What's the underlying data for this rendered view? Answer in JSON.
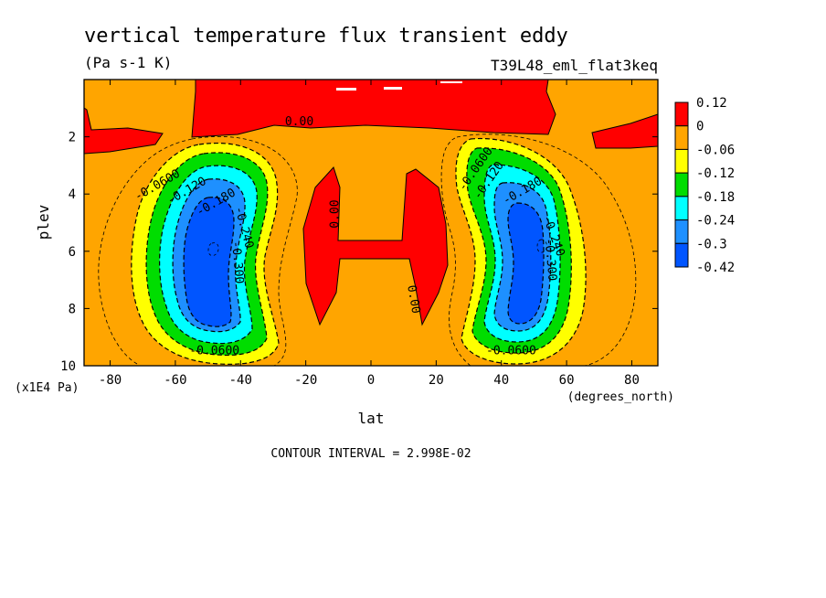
{
  "chart_data": {
    "type": "heatmap",
    "title": "vertical temperature flux transient eddy",
    "units": "(Pa s-1 K)",
    "run_label": "T39L48_eml_flat3keq",
    "xlabel": "lat",
    "x_units": "(degrees_north)",
    "ylabel": "plev",
    "y_units": "(x1E4 Pa)",
    "xlim": [
      -88,
      88
    ],
    "ylim": [
      0,
      10
    ],
    "y_reversed": true,
    "x_ticks": [
      "-80",
      "-60",
      "-40",
      "-20",
      "0",
      "20",
      "40",
      "60",
      "80"
    ],
    "x_tick_values": [
      -80,
      -60,
      -40,
      -20,
      0,
      20,
      40,
      60,
      80
    ],
    "y_ticks": [
      "2",
      "4",
      "6",
      "8",
      "10"
    ],
    "y_tick_values": [
      2,
      4,
      6,
      8,
      10
    ],
    "contour_interval_text": "CONTOUR INTERVAL = 2.998E-02",
    "colorbar": {
      "labels": [
        "0.12",
        "0",
        "-0.06",
        "-0.12",
        "-0.18",
        "-0.24",
        "-0.3",
        "-0.42"
      ],
      "colors": [
        "#ff0000",
        "#ffa500",
        "#ffff00",
        "#00dd00",
        "#00ffff",
        "#1e90ff",
        "#0055ff"
      ]
    },
    "contour_labels": [
      {
        "text": "0.00",
        "lat": -22,
        "plev": 1.6,
        "rot": 0
      },
      {
        "text": "0.00",
        "lat": -10,
        "plev": 4.7,
        "rot": -90
      },
      {
        "text": "0.00",
        "lat": 12,
        "plev": 7.7,
        "rot": 80
      },
      {
        "text": "-0.0600",
        "lat": -65,
        "plev": 3.8,
        "rot": -30
      },
      {
        "text": "-0.120",
        "lat": -56,
        "plev": 4.0,
        "rot": -30
      },
      {
        "text": "-0.180",
        "lat": -47,
        "plev": 4.4,
        "rot": -30
      },
      {
        "text": "-0.240",
        "lat": -40,
        "plev": 5.2,
        "rot": 75
      },
      {
        "text": "-0.300",
        "lat": -42,
        "plev": 6.4,
        "rot": 85
      },
      {
        "text": "-0.0600",
        "lat": -48,
        "plev": 9.6,
        "rot": 0
      },
      {
        "text": "-0.0600",
        "lat": 33,
        "plev": 3.2,
        "rot": -55
      },
      {
        "text": "-0.120",
        "lat": 37,
        "plev": 3.6,
        "rot": -55
      },
      {
        "text": "-0.180",
        "lat": 47,
        "plev": 4.0,
        "rot": -30
      },
      {
        "text": "-0.240",
        "lat": 55,
        "plev": 5.5,
        "rot": 70
      },
      {
        "text": "-0.300",
        "lat": 54,
        "plev": 6.3,
        "rot": 85
      },
      {
        "text": "-0.0600",
        "lat": 43,
        "plev": 9.6,
        "rot": 0
      }
    ]
  }
}
